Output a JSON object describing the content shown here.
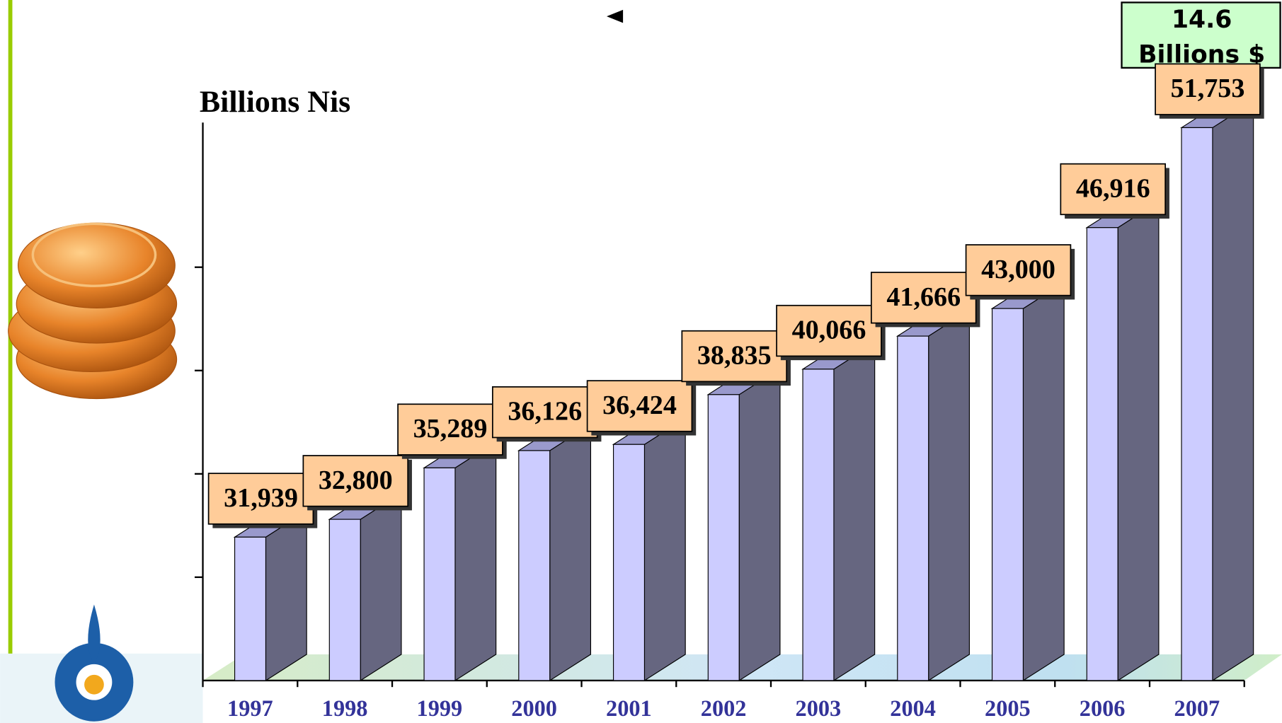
{
  "chart_data": {
    "type": "bar3d",
    "ylabel": "Billions Nis",
    "annotation_lines": [
      "14.6",
      "Billions $"
    ],
    "categories": [
      "1997",
      "1998",
      "1999",
      "2000",
      "2001",
      "2002",
      "2003",
      "2004",
      "2005",
      "2006",
      "2007"
    ],
    "values": [
      31939,
      32800,
      35289,
      36126,
      36424,
      38835,
      40066,
      41666,
      43000,
      46916,
      51753
    ],
    "value_labels": [
      "31,939",
      "32,800",
      "35,289",
      "36,126",
      "36,424",
      "38,835",
      "40,066",
      "41,666",
      "43,000",
      "46,916",
      "51,753"
    ],
    "color": "#ccccff",
    "side_color": "#666680",
    "top_color": "#9999cc",
    "label_box_color": "#ffcc99",
    "ylim": [
      25000,
      52000
    ],
    "yticks": [
      30000,
      35000,
      40000,
      45000
    ]
  }
}
